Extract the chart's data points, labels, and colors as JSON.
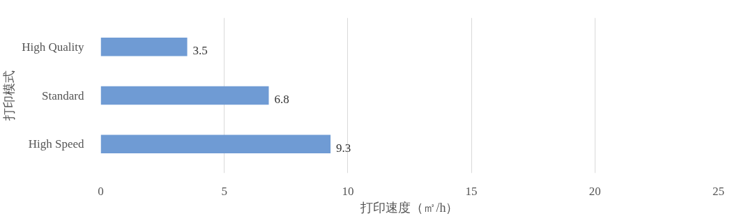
{
  "chart_data": {
    "type": "bar",
    "orientation": "horizontal",
    "categories": [
      "High Quality",
      "Standard",
      "High Speed"
    ],
    "values": [
      3.5,
      6.8,
      9.3
    ],
    "color": "#6f9bd4",
    "xlabel": "打印速度（㎡/h）",
    "ylabel": "打印模式",
    "xlim": [
      0,
      25
    ],
    "xticks": [
      0,
      5,
      10,
      15,
      20,
      25
    ],
    "grid": "x",
    "data_labels": true
  }
}
